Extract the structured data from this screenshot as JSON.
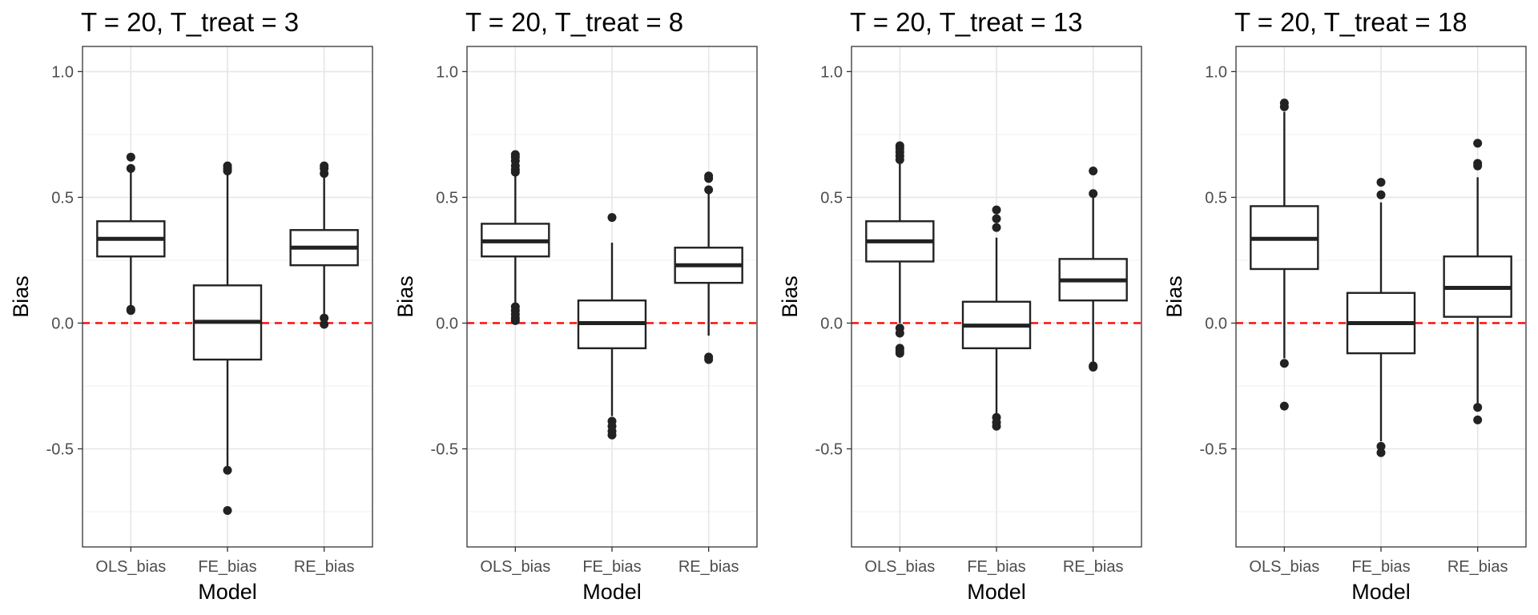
{
  "chart_data": [
    {
      "type": "box",
      "title": "T = 20, T_treat = 3",
      "xlabel": "Model",
      "ylabel": "Bias",
      "categories": [
        "OLS_bias",
        "FE_bias",
        "RE_bias"
      ],
      "ylim": [
        -0.89,
        1.1
      ],
      "yticks": [
        -0.5,
        0.0,
        0.5,
        1.0
      ],
      "ytick_labels": [
        "-0.5",
        "0.0",
        "0.5",
        "1.0"
      ],
      "reference_line": {
        "y": 0.0,
        "color": "#ff0000",
        "style": "dashed"
      },
      "grid": true,
      "boxes": [
        {
          "category": "OLS_bias",
          "whisker_low": 0.06,
          "q1": 0.265,
          "median": 0.335,
          "q3": 0.405,
          "whisker_high": 0.6,
          "outliers": [
            0.05,
            0.055,
            0.615,
            0.66
          ]
        },
        {
          "category": "FE_bias",
          "whisker_low": -0.57,
          "q1": -0.145,
          "median": 0.005,
          "q3": 0.15,
          "whisker_high": 0.6,
          "outliers": [
            -0.585,
            -0.745,
            0.605,
            0.615,
            0.625
          ]
        },
        {
          "category": "RE_bias",
          "whisker_low": 0.03,
          "q1": 0.23,
          "median": 0.3,
          "q3": 0.37,
          "whisker_high": 0.58,
          "outliers": [
            0.02,
            -0.005,
            0.595,
            0.615,
            0.625
          ]
        }
      ]
    },
    {
      "type": "box",
      "title": "T = 20, T_treat = 8",
      "xlabel": "Model",
      "ylabel": "Bias",
      "categories": [
        "OLS_bias",
        "FE_bias",
        "RE_bias"
      ],
      "ylim": [
        -0.89,
        1.1
      ],
      "yticks": [
        -0.5,
        0.0,
        0.5,
        1.0
      ],
      "ytick_labels": [
        "-0.5",
        "0.0",
        "0.5",
        "1.0"
      ],
      "reference_line": {
        "y": 0.0,
        "color": "#ff0000",
        "style": "dashed"
      },
      "grid": true,
      "boxes": [
        {
          "category": "OLS_bias",
          "whisker_low": 0.07,
          "q1": 0.265,
          "median": 0.325,
          "q3": 0.395,
          "whisker_high": 0.59,
          "outliers": [
            0.065,
            0.05,
            0.035,
            0.02,
            0.01,
            0.6,
            0.61,
            0.625,
            0.645,
            0.66,
            0.67
          ]
        },
        {
          "category": "FE_bias",
          "whisker_low": -0.37,
          "q1": -0.1,
          "median": 0.0,
          "q3": 0.09,
          "whisker_high": 0.32,
          "outliers": [
            -0.39,
            -0.41,
            -0.43,
            -0.445,
            0.42
          ]
        },
        {
          "category": "RE_bias",
          "whisker_low": -0.05,
          "q1": 0.16,
          "median": 0.23,
          "q3": 0.3,
          "whisker_high": 0.52,
          "outliers": [
            -0.135,
            -0.145,
            0.53,
            0.575,
            0.585
          ]
        }
      ]
    },
    {
      "type": "box",
      "title": "T = 20, T_treat = 13",
      "xlabel": "Model",
      "ylabel": "Bias",
      "categories": [
        "OLS_bias",
        "FE_bias",
        "RE_bias"
      ],
      "ylim": [
        -0.89,
        1.1
      ],
      "yticks": [
        -0.5,
        0.0,
        0.5,
        1.0
      ],
      "ytick_labels": [
        "-0.5",
        "0.0",
        "0.5",
        "1.0"
      ],
      "reference_line": {
        "y": 0.0,
        "color": "#ff0000",
        "style": "dashed"
      },
      "grid": true,
      "boxes": [
        {
          "category": "OLS_bias",
          "whisker_low": 0.0,
          "q1": 0.245,
          "median": 0.325,
          "q3": 0.405,
          "whisker_high": 0.64,
          "outliers": [
            -0.02,
            -0.04,
            -0.1,
            -0.11,
            -0.12,
            0.65,
            0.665,
            0.68,
            0.695,
            0.705
          ]
        },
        {
          "category": "FE_bias",
          "whisker_low": -0.36,
          "q1": -0.1,
          "median": -0.01,
          "q3": 0.085,
          "whisker_high": 0.34,
          "outliers": [
            -0.375,
            -0.395,
            -0.41,
            0.38,
            0.415,
            0.45
          ]
        },
        {
          "category": "RE_bias",
          "whisker_low": -0.16,
          "q1": 0.09,
          "median": 0.17,
          "q3": 0.255,
          "whisker_high": 0.5,
          "outliers": [
            -0.17,
            -0.175,
            0.515,
            0.605
          ]
        }
      ]
    },
    {
      "type": "box",
      "title": "T = 20, T_treat = 18",
      "xlabel": "Model",
      "ylabel": "Bias",
      "categories": [
        "OLS_bias",
        "FE_bias",
        "RE_bias"
      ],
      "ylim": [
        -0.89,
        1.1
      ],
      "yticks": [
        -0.5,
        0.0,
        0.5,
        1.0
      ],
      "ytick_labels": [
        "-0.5",
        "0.0",
        "0.5",
        "1.0"
      ],
      "reference_line": {
        "y": 0.0,
        "color": "#ff0000",
        "style": "dashed"
      },
      "grid": true,
      "boxes": [
        {
          "category": "OLS_bias",
          "whisker_low": -0.14,
          "q1": 0.215,
          "median": 0.335,
          "q3": 0.465,
          "whisker_high": 0.84,
          "outliers": [
            -0.16,
            -0.33,
            0.86,
            0.875
          ]
        },
        {
          "category": "FE_bias",
          "whisker_low": -0.47,
          "q1": -0.12,
          "median": 0.0,
          "q3": 0.12,
          "whisker_high": 0.48,
          "outliers": [
            -0.49,
            -0.515,
            0.51,
            0.56
          ]
        },
        {
          "category": "RE_bias",
          "whisker_low": -0.32,
          "q1": 0.025,
          "median": 0.14,
          "q3": 0.265,
          "whisker_high": 0.58,
          "outliers": [
            -0.335,
            -0.385,
            0.625,
            0.635,
            0.715
          ]
        }
      ]
    }
  ]
}
